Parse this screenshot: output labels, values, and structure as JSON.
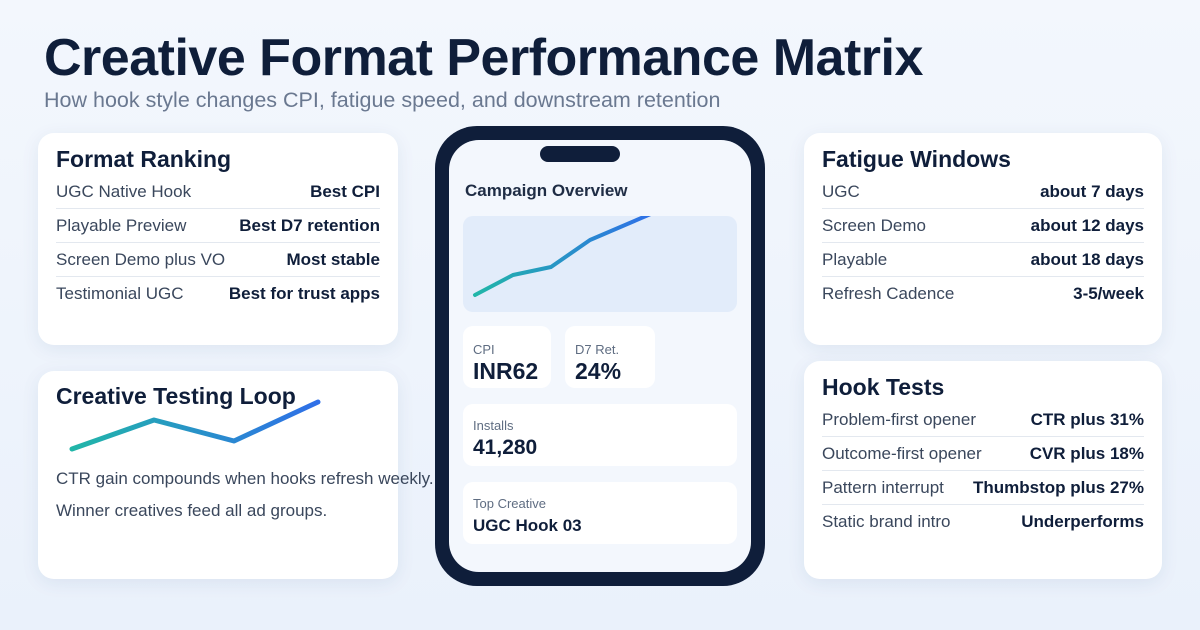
{
  "header": {
    "title": "Creative Format Performance Matrix",
    "subtitle": "How hook style changes CPI, fatigue speed, and downstream retention"
  },
  "format_ranking": {
    "title": "Format Ranking",
    "rows": [
      {
        "label": "UGC Native Hook",
        "value": "Best CPI"
      },
      {
        "label": "Playable Preview",
        "value": "Best D7 retention"
      },
      {
        "label": "Screen Demo plus VO",
        "value": "Most stable"
      },
      {
        "label": "Testimonial UGC",
        "value": "Best for trust apps"
      }
    ]
  },
  "testing_loop": {
    "title": "Creative Testing Loop",
    "lines": [
      "CTR gain compounds when hooks refresh weekly.",
      "Winner creatives feed all ad groups."
    ],
    "colors": {
      "start": "#21b6a8",
      "end": "#2f6fe8"
    }
  },
  "phone": {
    "panel_title": "Campaign Overview",
    "chart_colors": {
      "start": "#21b6a8",
      "end": "#2f6fe8"
    },
    "cpi": {
      "label": "CPI",
      "value": "INR62"
    },
    "d7": {
      "label": "D7 Ret.",
      "value": "24%"
    },
    "installs": {
      "label": "Installs",
      "value": "41,280"
    },
    "top_creative": {
      "label": "Top Creative",
      "value": "UGC Hook 03"
    }
  },
  "fatigue": {
    "title": "Fatigue Windows",
    "rows": [
      {
        "label": "UGC",
        "value": "about 7 days"
      },
      {
        "label": "Screen Demo",
        "value": "about 12 days"
      },
      {
        "label": "Playable",
        "value": "about 18 days"
      },
      {
        "label": "Refresh Cadence",
        "value": "3-5/week"
      }
    ]
  },
  "hook_tests": {
    "title": "Hook Tests",
    "rows": [
      {
        "label": "Problem-first opener",
        "value": "CTR plus 31%"
      },
      {
        "label": "Outcome-first opener",
        "value": "CVR plus 18%"
      },
      {
        "label": "Pattern interrupt",
        "value": "Thumbstop plus 27%"
      },
      {
        "label": "Static brand intro",
        "value": "Underperforms"
      }
    ]
  }
}
